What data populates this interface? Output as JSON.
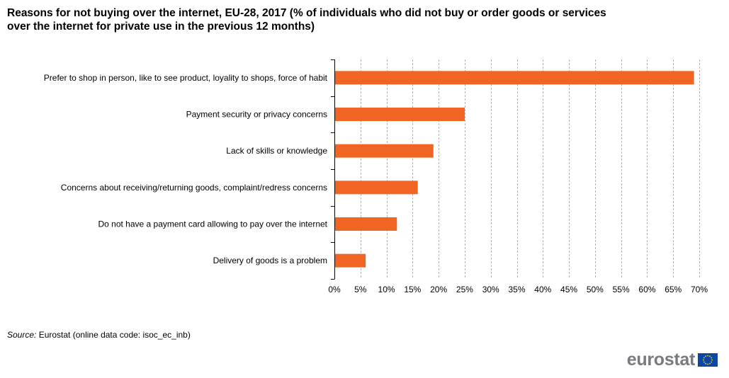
{
  "title": "Reasons for not buying over the internet, EU-28, 2017 (% of individuals who did not buy or order goods or services over the internet for private use in the previous 12 months)",
  "source": {
    "label": "Source:",
    "text": "Eurostat (online data code: isoc_ec_inb)"
  },
  "logo": {
    "text": "eurostat"
  },
  "colors": {
    "bar": "#f06424",
    "grid": "#b4b4b4",
    "axis": "#000000"
  },
  "chart_data": {
    "type": "bar",
    "orientation": "horizontal",
    "categories": [
      "Prefer to shop in person, like to see product, loyality to shops, force of habit",
      "Payment security or privacy concerns",
      "Lack of skills or knowledge",
      "Concerns about receiving/returning goods, complaint/redress concerns",
      "Do not have a payment card allowing to pay over the internet",
      "Delivery of goods is a problem"
    ],
    "values": [
      69,
      25,
      19,
      16,
      12,
      6
    ],
    "xlim": [
      0,
      70
    ],
    "xticks": [
      0,
      5,
      10,
      15,
      20,
      25,
      30,
      35,
      40,
      45,
      50,
      55,
      60,
      65,
      70
    ],
    "tick_suffix": "%",
    "grid": "vertical dashed",
    "legend": "none"
  }
}
